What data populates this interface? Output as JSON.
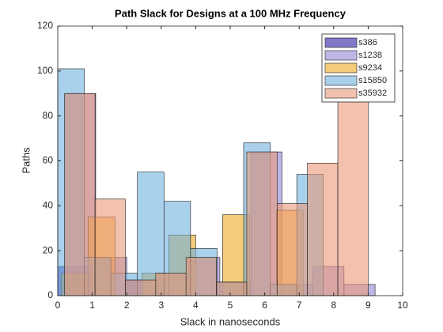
{
  "chart_data": {
    "type": "histogram",
    "title": "Path Slack for Designs at a 100 MHz Frequency",
    "x_label": "Slack in nanoseconds",
    "y_label": "Paths",
    "xlim": [
      0,
      10
    ],
    "ylim": [
      0,
      120
    ],
    "xticks": [
      0,
      1,
      2,
      3,
      4,
      5,
      6,
      7,
      8,
      9,
      10
    ],
    "yticks": [
      0,
      20,
      40,
      60,
      80,
      100,
      120
    ],
    "legend": "top-right",
    "series": [
      {
        "name": "s386",
        "color": "#2c1fa3",
        "bins": [
          0,
          0.5,
          1,
          1.5,
          2,
          2.5
        ],
        "values": [
          13,
          13,
          0,
          0,
          7
        ]
      },
      {
        "name": "s1238",
        "color": "#9685d6",
        "bins": [
          0.2,
          1.1,
          2.0,
          2.9,
          3.8,
          4.7,
          5.6,
          6.5,
          7.4,
          8.3,
          9.2
        ],
        "values": [
          90,
          17,
          7,
          10,
          17,
          6,
          64,
          5,
          13,
          5
        ]
      },
      {
        "name": "s9234",
        "color": "#eda920",
        "bins": [
          0.1,
          0.88,
          1.66,
          2.44,
          3.22,
          4.0,
          4.78,
          5.56,
          6.34,
          7.12
        ],
        "values": [
          10,
          35,
          0,
          10,
          27,
          0,
          36,
          0,
          38
        ]
      },
      {
        "name": "s15850",
        "color": "#6fb3e0",
        "bins": [
          0,
          0.77,
          1.54,
          2.31,
          3.08,
          3.85,
          4.62,
          5.39,
          6.16,
          6.93,
          7.7
        ],
        "values": [
          101,
          17,
          10,
          55,
          42,
          21,
          6,
          68,
          5,
          54
        ]
      },
      {
        "name": "s35932",
        "color": "#ea9a7a",
        "bins": [
          0.2,
          1.08,
          1.96,
          2.84,
          3.72,
          4.6,
          5.48,
          6.36,
          7.24,
          8.12,
          9.0
        ],
        "values": [
          90,
          43,
          7,
          10,
          17,
          6,
          64,
          41,
          59,
          100
        ]
      }
    ]
  }
}
